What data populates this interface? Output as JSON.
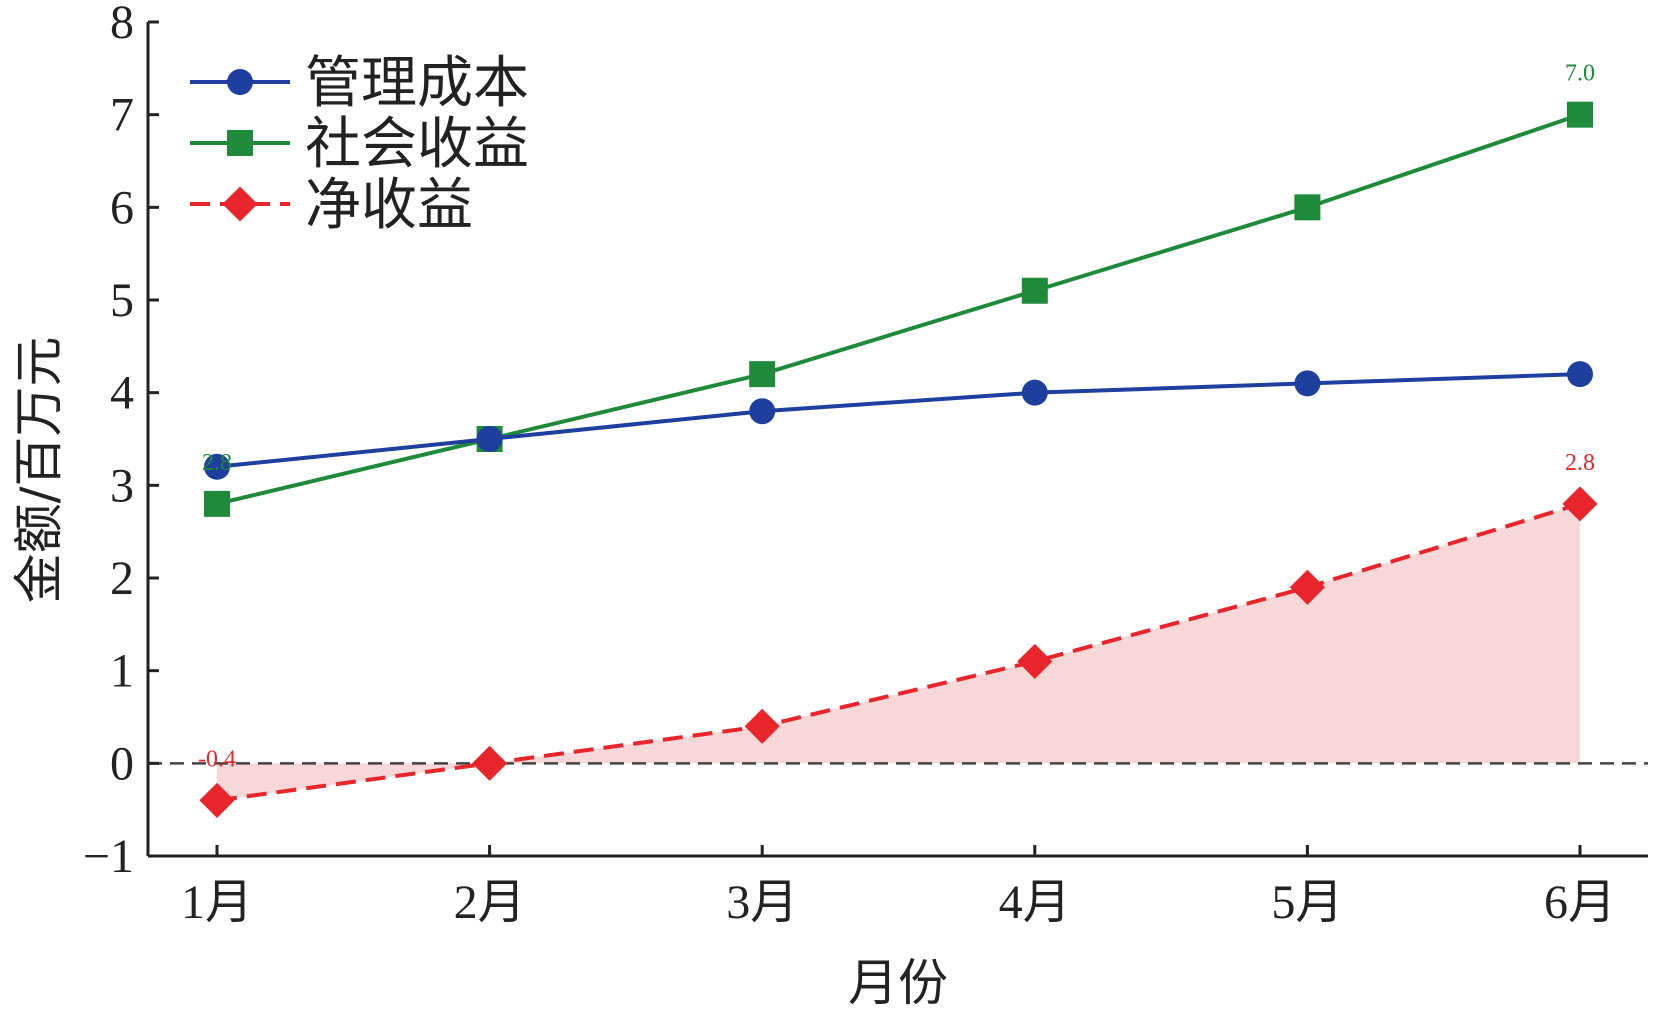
{
  "chart_data": {
    "type": "line",
    "title": "",
    "xlabel": "月份",
    "ylabel": "金额/百万元",
    "categories": [
      "1月",
      "2月",
      "3月",
      "4月",
      "5月",
      "6月"
    ],
    "ylim": [
      -1,
      8
    ],
    "yticks": [
      -1,
      0,
      1,
      2,
      3,
      4,
      5,
      6,
      7,
      8
    ],
    "ytick_labels": [
      "−1",
      "0",
      "1",
      "2",
      "3",
      "4",
      "5",
      "6",
      "7",
      "8"
    ],
    "grid": false,
    "legend_position": "top-left",
    "reference_line": {
      "y": 0,
      "style": "dashed",
      "color": "#444444"
    },
    "series": [
      {
        "name": "管理成本",
        "values": [
          3.2,
          3.5,
          3.8,
          4.0,
          4.1,
          4.2
        ],
        "color": "#1f3f9e",
        "marker": "circle",
        "line_style": "solid"
      },
      {
        "name": "社会收益",
        "values": [
          2.8,
          3.5,
          4.2,
          5.1,
          6.0,
          7.0
        ],
        "color": "#1e8a3a",
        "marker": "square",
        "line_style": "solid"
      },
      {
        "name": "净收益",
        "values": [
          -0.4,
          0.0,
          0.4,
          1.1,
          1.9,
          2.8
        ],
        "color": "#e8252a",
        "marker": "diamond",
        "line_style": "dashed",
        "fill_to_zero": true,
        "fill_color": "#f8d7d9"
      }
    ],
    "annotations": [
      {
        "text": "2.8",
        "category": "1月",
        "y": 2.8,
        "color": "#1e8a3a"
      },
      {
        "text": "7.0",
        "category": "6月",
        "y": 7.0,
        "color": "#1e8a3a"
      },
      {
        "text": "-0.4",
        "category": "1月",
        "y": -0.4,
        "color": "#e8252a"
      },
      {
        "text": "2.8",
        "category": "6月",
        "y": 2.8,
        "color": "#e8252a"
      }
    ]
  }
}
